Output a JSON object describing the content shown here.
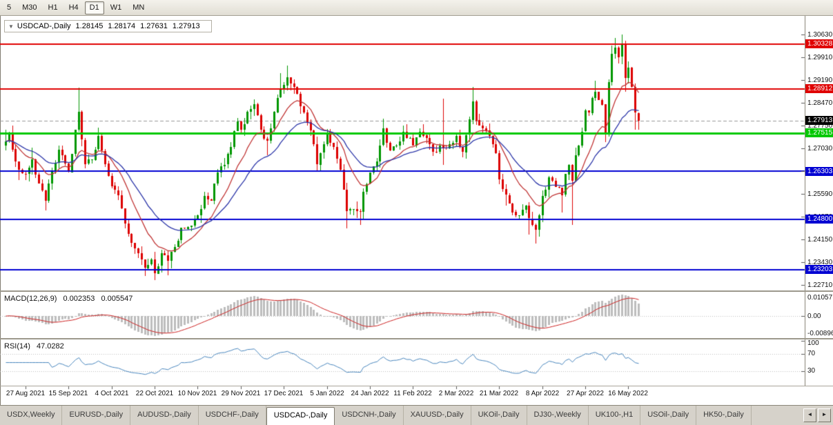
{
  "toolbar": {
    "timeframes": [
      "5",
      "M30",
      "H1",
      "H4",
      "D1",
      "W1",
      "MN"
    ],
    "active": "D1"
  },
  "chart_header": {
    "collapse_icon": "▼",
    "symbol_period": "USDCAD-,Daily",
    "open": "1.28145",
    "high": "1.28174",
    "low": "1.27631",
    "close": "1.27913"
  },
  "chart_data": {
    "type": "candlestick",
    "symbol": "USDCAD",
    "period": "Daily",
    "x_axis": {
      "labels": [
        "27 Aug 2021",
        "15 Sep 2021",
        "4 Oct 2021",
        "22 Oct 2021",
        "10 Nov 2021",
        "29 Nov 2021",
        "17 Dec 2021",
        "5 Jan 2022",
        "24 Jan 2022",
        "11 Feb 2022",
        "2 Mar 2022",
        "21 Mar 2022",
        "8 Apr 2022",
        "27 Apr 2022",
        "16 May 2022"
      ],
      "label_indices": [
        6,
        19,
        32,
        45,
        58,
        71,
        84,
        97,
        110,
        123,
        136,
        149,
        162,
        175,
        188
      ],
      "num_candles": 192
    },
    "y_axis": {
      "tick_labels": [
        "1.30630",
        "1.29910",
        "1.29190",
        "1.28470",
        "1.27750",
        "1.27030",
        "1.26310",
        "1.25590",
        "1.24870",
        "1.24150",
        "1.23430",
        "1.22710"
      ],
      "tick_values": [
        1.3063,
        1.2991,
        1.2919,
        1.2847,
        1.2775,
        1.2703,
        1.2631,
        1.2559,
        1.2487,
        1.2415,
        1.2343,
        1.2271
      ],
      "view_top": 1.3117,
      "view_bottom": 1.2259
    },
    "candles_generation": {
      "comment": "approximate swing anchors read from chart: [index, close, high, low]",
      "anchors": [
        [
          0,
          1.2725,
          1.2762,
          null
        ],
        [
          1,
          1.2752,
          null,
          null
        ],
        [
          2,
          1.27,
          null,
          null
        ],
        [
          4,
          1.2635,
          null,
          1.2602
        ],
        [
          6,
          1.2622,
          null,
          null
        ],
        [
          8,
          1.2668,
          1.2706,
          null
        ],
        [
          10,
          1.2592,
          null,
          null
        ],
        [
          12,
          1.2538,
          null,
          1.2508
        ],
        [
          14,
          1.2632,
          null,
          null
        ],
        [
          16,
          1.2698,
          1.2712,
          null
        ],
        [
          18,
          1.2655,
          null,
          null
        ],
        [
          19,
          1.2628,
          null,
          null
        ],
        [
          21,
          1.2762,
          null,
          null
        ],
        [
          22,
          1.2818,
          1.2895,
          null
        ],
        [
          24,
          1.2655,
          null,
          1.264
        ],
        [
          26,
          1.2668,
          null,
          null
        ],
        [
          28,
          1.2742,
          1.2768,
          null
        ],
        [
          30,
          1.2655,
          null,
          null
        ],
        [
          32,
          1.2585,
          null,
          null
        ],
        [
          34,
          1.2556,
          null,
          null
        ],
        [
          36,
          1.2465,
          null,
          null
        ],
        [
          38,
          1.2405,
          null,
          null
        ],
        [
          40,
          1.2372,
          null,
          null
        ],
        [
          42,
          1.2325,
          null,
          1.23
        ],
        [
          44,
          1.2352,
          null,
          null
        ],
        [
          45,
          1.2308,
          null,
          1.2288
        ],
        [
          47,
          1.2372,
          null,
          null
        ],
        [
          49,
          1.2348,
          null,
          1.2302
        ],
        [
          51,
          1.2392,
          null,
          null
        ],
        [
          53,
          1.2452,
          null,
          null
        ],
        [
          55,
          1.2455,
          null,
          null
        ],
        [
          58,
          1.2492,
          null,
          null
        ],
        [
          60,
          1.2552,
          null,
          null
        ],
        [
          62,
          1.2538,
          null,
          null
        ],
        [
          64,
          1.2628,
          null,
          null
        ],
        [
          66,
          1.2652,
          null,
          null
        ],
        [
          68,
          1.2708,
          null,
          null
        ],
        [
          70,
          1.2788,
          1.28,
          null
        ],
        [
          71,
          1.2762,
          null,
          null
        ],
        [
          73,
          1.2818,
          null,
          null
        ],
        [
          75,
          1.2842,
          1.2857,
          null
        ],
        [
          77,
          1.2762,
          null,
          null
        ],
        [
          79,
          1.2728,
          null,
          1.2682
        ],
        [
          81,
          1.2818,
          null,
          null
        ],
        [
          83,
          1.2892,
          1.294,
          null
        ],
        [
          85,
          1.2928,
          1.2964,
          null
        ],
        [
          87,
          1.2898,
          null,
          null
        ],
        [
          89,
          1.2836,
          null,
          null
        ],
        [
          91,
          1.2786,
          null,
          null
        ],
        [
          93,
          1.2716,
          null,
          null
        ],
        [
          94,
          1.2652,
          null,
          1.263
        ],
        [
          96,
          1.2716,
          null,
          null
        ],
        [
          97,
          1.2748,
          null,
          null
        ],
        [
          99,
          1.2708,
          null,
          null
        ],
        [
          101,
          1.2636,
          null,
          null
        ],
        [
          103,
          1.2506,
          null,
          1.245
        ],
        [
          105,
          1.2512,
          null,
          null
        ],
        [
          107,
          1.2502,
          null,
          1.2462
        ],
        [
          108,
          1.2566,
          null,
          null
        ],
        [
          110,
          1.2626,
          null,
          null
        ],
        [
          112,
          1.2662,
          null,
          null
        ],
        [
          114,
          1.2766,
          1.2796,
          null
        ],
        [
          116,
          1.2696,
          null,
          null
        ],
        [
          118,
          1.2712,
          null,
          null
        ],
        [
          120,
          1.2756,
          null,
          null
        ],
        [
          122,
          1.2736,
          null,
          null
        ],
        [
          123,
          1.2712,
          null,
          null
        ],
        [
          125,
          1.2756,
          null,
          null
        ],
        [
          127,
          1.2736,
          null,
          null
        ],
        [
          129,
          1.2692,
          null,
          null
        ],
        [
          132,
          1.2706,
          1.286,
          1.2652
        ],
        [
          134,
          1.2716,
          null,
          null
        ],
        [
          136,
          1.2742,
          null,
          null
        ],
        [
          138,
          1.2692,
          null,
          null
        ],
        [
          141,
          1.2852,
          1.2896,
          null
        ],
        [
          142,
          1.2792,
          null,
          null
        ],
        [
          144,
          1.2766,
          null,
          null
        ],
        [
          146,
          1.2742,
          null,
          null
        ],
        [
          148,
          1.2688,
          null,
          null
        ],
        [
          149,
          1.2606,
          null,
          null
        ],
        [
          151,
          1.2556,
          null,
          1.2522
        ],
        [
          153,
          1.2502,
          null,
          null
        ],
        [
          155,
          1.2492,
          null,
          null
        ],
        [
          157,
          1.2522,
          null,
          null
        ],
        [
          158,
          1.2482,
          null,
          1.243
        ],
        [
          160,
          1.2446,
          null,
          1.2403
        ],
        [
          162,
          1.2552,
          null,
          null
        ],
        [
          164,
          1.2612,
          null,
          null
        ],
        [
          166,
          1.2582,
          null,
          null
        ],
        [
          168,
          1.2556,
          null,
          1.25
        ],
        [
          169,
          1.2622,
          null,
          null
        ],
        [
          170,
          1.2652,
          null,
          null
        ],
        [
          171,
          1.2602,
          null,
          1.2462
        ],
        [
          172,
          1.2682,
          null,
          null
        ],
        [
          173,
          1.2712,
          null,
          null
        ],
        [
          175,
          1.2822,
          null,
          null
        ],
        [
          176,
          1.2815,
          null,
          null
        ],
        [
          177,
          1.2862,
          null,
          null
        ],
        [
          178,
          1.2882,
          1.2916,
          null
        ],
        [
          180,
          1.2842,
          null,
          null
        ],
        [
          181,
          1.2752,
          null,
          1.2722
        ],
        [
          182,
          1.2912,
          null,
          null
        ],
        [
          183,
          1.3002,
          1.3028,
          null
        ],
        [
          184,
          1.3022,
          1.3052,
          null
        ],
        [
          185,
          1.2992,
          null,
          null
        ],
        [
          186,
          1.303,
          1.3063,
          null
        ],
        [
          187,
          1.2926,
          null,
          1.2882
        ],
        [
          188,
          1.2958,
          null,
          null
        ],
        [
          189,
          1.2896,
          null,
          null
        ],
        [
          190,
          1.2816,
          null,
          1.2762
        ],
        [
          191,
          1.27913,
          1.28174,
          1.27631
        ]
      ],
      "noise": 0.0011,
      "wick": 0.0024,
      "seed": 11,
      "last_open": 1.28145
    },
    "horizontal_lines": [
      {
        "value": 1.30328,
        "text": "1.30328",
        "color": "#e00000",
        "width": 2
      },
      {
        "value": 1.28912,
        "text": "1.28912",
        "color": "#e00000",
        "width": 2
      },
      {
        "value": 1.27515,
        "text": "1.27515",
        "color": "#00c800",
        "width": 3
      },
      {
        "value": 1.26303,
        "text": "1.26303",
        "color": "#0000d2",
        "width": 2
      },
      {
        "value": 1.248,
        "text": "1.24800",
        "color": "#0000d2",
        "width": 2
      },
      {
        "value": 1.23203,
        "text": "1.23203",
        "color": "#0000d2",
        "width": 2
      }
    ],
    "current_price": {
      "text": "1.27913",
      "value": 1.27913,
      "box_color": "#000000"
    },
    "moving_averages": [
      {
        "type": "EMA",
        "period": 12,
        "color": "#c03434"
      },
      {
        "type": "EMA",
        "period": 26,
        "color": "#2b35a8"
      }
    ],
    "indicators": {
      "macd": {
        "name": "MACD(12,26,9)",
        "fast": 12,
        "slow": 26,
        "signal": 9,
        "value_main": "0.002353",
        "value_signal": "0.005547",
        "axis_labels": [
          "0.01057",
          "0.00",
          "-0.00896"
        ],
        "colors": {
          "histogram": "#bdbdbd",
          "signal": "#cc2020"
        }
      },
      "rsi": {
        "name": "RSI(14)",
        "period": 14,
        "value": "47.0282",
        "axis_labels": [
          "100",
          "70",
          "30"
        ],
        "levels": [
          70,
          30
        ],
        "color": "#4684bc"
      }
    },
    "colors": {
      "bull": "#009600",
      "bear": "#dc0000",
      "background": "#ffffff",
      "level_dotted": "#bdbdbd",
      "bid_line": "#999999",
      "axis_tick": "#555555"
    }
  },
  "tabs": {
    "items": [
      "USDX,Weekly",
      "EURUSD-,Daily",
      "AUDUSD-,Daily",
      "USDCHF-,Daily",
      "USDCAD-,Daily",
      "USDCNH-,Daily",
      "XAUUSD-,Daily",
      "UKOil-,Daily",
      "DJ30-,Weekly",
      "UK100-,H1",
      "USOil-,Daily",
      "HK50-,Daily"
    ],
    "active": "USDCAD-,Daily",
    "scroll_left": "◄",
    "scroll_right": "►"
  }
}
